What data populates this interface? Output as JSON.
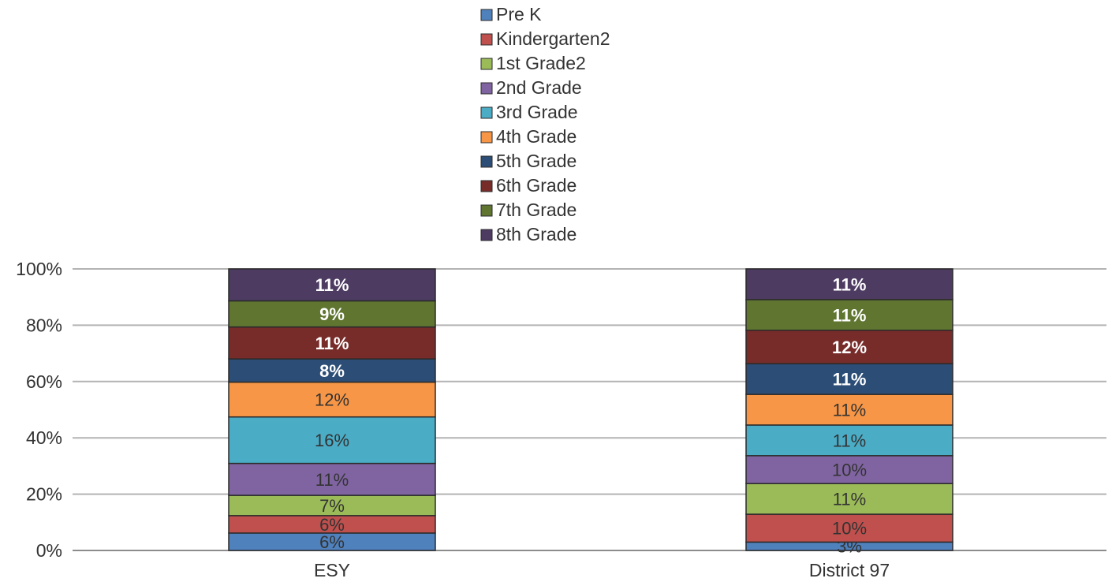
{
  "chart_data": {
    "type": "bar",
    "stacked": true,
    "percent_stacked": true,
    "categories": [
      "ESY",
      "District 97"
    ],
    "y_ticks": [
      "0%",
      "20%",
      "40%",
      "60%",
      "80%",
      "100%"
    ],
    "ylim": [
      0,
      100
    ],
    "grid": true,
    "legend_position": "top",
    "series": [
      {
        "name": "Pre K",
        "color": "#4f81bd",
        "values": [
          6,
          3
        ],
        "labels": [
          "6%",
          "3%"
        ],
        "label_color": "#333333"
      },
      {
        "name": "Kindergarten2",
        "color": "#c0504d",
        "values": [
          6,
          10
        ],
        "labels": [
          "6%",
          "10%"
        ],
        "label_color": "#333333"
      },
      {
        "name": "1st Grade2",
        "color": "#9bbb59",
        "values": [
          7,
          11
        ],
        "labels": [
          "7%",
          "11%"
        ],
        "label_color": "#333333"
      },
      {
        "name": "2nd Grade",
        "color": "#8064a2",
        "values": [
          11,
          10
        ],
        "labels": [
          "11%",
          "10%"
        ],
        "label_color": "#333333"
      },
      {
        "name": "3rd Grade",
        "color": "#4bacc6",
        "values": [
          16,
          11
        ],
        "labels": [
          "16%",
          "11%"
        ],
        "label_color": "#333333"
      },
      {
        "name": "4th Grade",
        "color": "#f79646",
        "values": [
          12,
          11
        ],
        "labels": [
          "12%",
          "11%"
        ],
        "label_color": "#333333"
      },
      {
        "name": "5th Grade",
        "color": "#2c4d75",
        "values": [
          8,
          11
        ],
        "labels": [
          "8%",
          "11%"
        ],
        "label_color": "#ffffff"
      },
      {
        "name": "6th Grade",
        "color": "#772c2a",
        "values": [
          11,
          12
        ],
        "labels": [
          "11%",
          "12%"
        ],
        "label_color": "#ffffff"
      },
      {
        "name": "7th Grade",
        "color": "#5f7530",
        "values": [
          9,
          11
        ],
        "labels": [
          "9%",
          "11%"
        ],
        "label_color": "#ffffff"
      },
      {
        "name": "8th Grade",
        "color": "#4d3b62",
        "values": [
          11,
          11
        ],
        "labels": [
          "11%",
          "11%"
        ],
        "label_color": "#ffffff"
      }
    ]
  }
}
